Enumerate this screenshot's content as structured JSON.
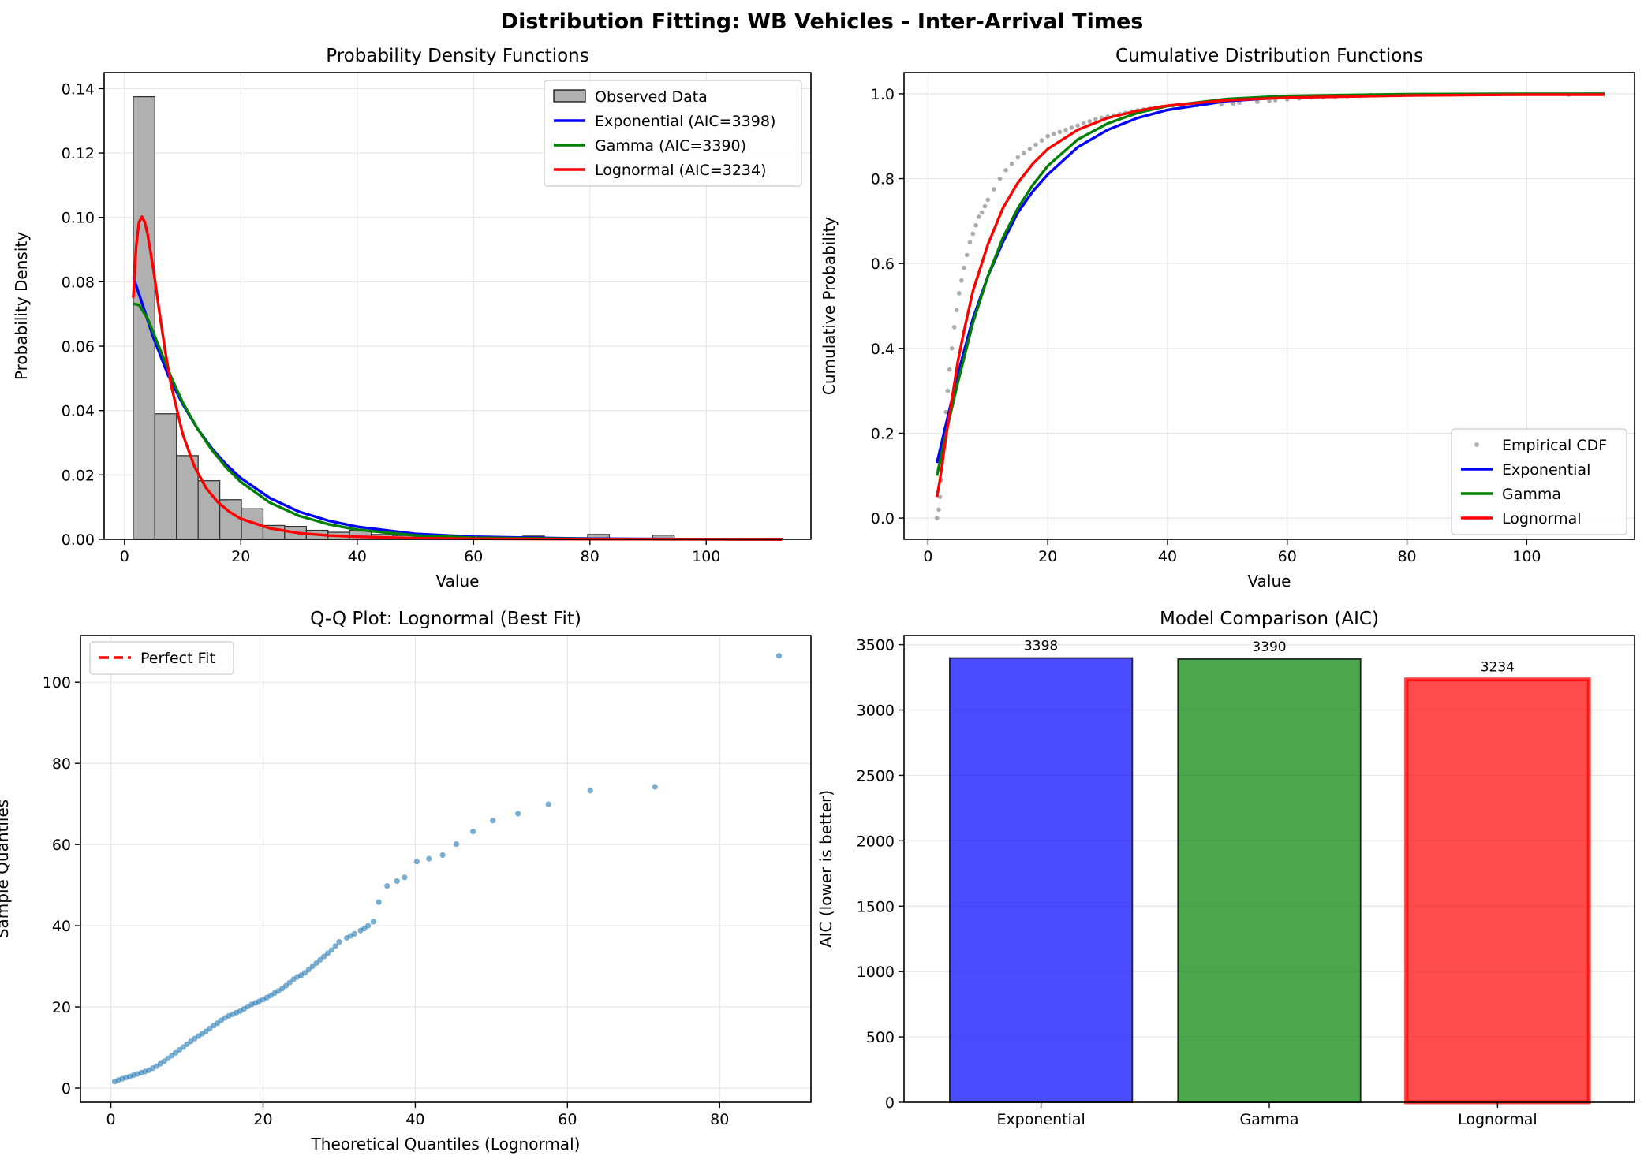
{
  "figure": {
    "suptitle": "Distribution Fitting: WB Vehicles - Inter-Arrival Times"
  },
  "colors": {
    "exponential": "#0000ff",
    "gamma": "#008000",
    "lognormal": "#ff0000",
    "histogram": "#b0b0b0",
    "empirical": "#808080",
    "qq_points": "#1f77b4",
    "grid": "#e6e6e6"
  },
  "chart_data": [
    {
      "id": "pdf",
      "type": "bar",
      "title": "Probability Density Functions",
      "xlabel": "Value",
      "ylabel": "Probability Density",
      "xlim": [
        -3.5,
        118
      ],
      "ylim": [
        0,
        0.145
      ],
      "xticks": [
        0,
        20,
        40,
        60,
        80,
        100
      ],
      "yticks": [
        0.0,
        0.02,
        0.04,
        0.06,
        0.08,
        0.1,
        0.12,
        0.14
      ],
      "ytick_labels": [
        "0.00",
        "0.02",
        "0.04",
        "0.06",
        "0.08",
        "0.10",
        "0.12",
        "0.14"
      ],
      "grid": true,
      "legend_position": "upper right",
      "legend": [
        "Observed Data",
        "Exponential (AIC=3398)",
        "Gamma (AIC=3390)",
        "Lognormal (AIC=3234)"
      ],
      "histogram": {
        "name": "Observed Data",
        "bin_start": 1.5,
        "bin_width": 3.72,
        "counts_density": [
          0.1375,
          0.039,
          0.026,
          0.0182,
          0.0123,
          0.0095,
          0.0043,
          0.004,
          0.0028,
          0.0022,
          0.0028,
          0.0015,
          0.0012,
          0.0008,
          0.0006,
          0.0005,
          0.0004,
          0.0004,
          0.001,
          0.0005,
          0.0005,
          0.0015,
          0.0003,
          0.0003,
          0.0013,
          0.0,
          0.0,
          0.0,
          0.0,
          0.0003
        ]
      },
      "series": [
        {
          "name": "Exponential (AIC=3398)",
          "color_key": "exponential",
          "x": [
            1.5,
            3,
            5,
            7.5,
            10,
            12.5,
            15,
            17.5,
            20,
            25,
            30,
            35,
            40,
            50,
            60,
            80,
            100,
            113
          ],
          "y": [
            0.0815,
            0.0735,
            0.0625,
            0.051,
            0.042,
            0.0345,
            0.0283,
            0.0232,
            0.019,
            0.0128,
            0.0086,
            0.0058,
            0.0039,
            0.0017,
            0.0008,
            0.0002,
            4e-05,
            1e-05
          ]
        },
        {
          "name": "Gamma (AIC=3390)",
          "color_key": "gamma",
          "x": [
            1.5,
            2.5,
            4,
            6,
            8,
            10,
            12.5,
            15,
            17.5,
            20,
            25,
            30,
            35,
            40,
            50,
            60,
            80,
            100,
            113
          ],
          "y": [
            0.0732,
            0.0728,
            0.0685,
            0.0595,
            0.0505,
            0.0425,
            0.0345,
            0.0278,
            0.0223,
            0.0178,
            0.0114,
            0.0073,
            0.0047,
            0.003,
            0.0012,
            0.0005,
            0.0001,
            2e-05,
            1e-05
          ]
        },
        {
          "name": "Lognormal (AIC=3234)",
          "color_key": "lognormal",
          "x": [
            1.5,
            2,
            2.5,
            3,
            3.5,
            4,
            5,
            6,
            7,
            8,
            10,
            12,
            14,
            16,
            18,
            20,
            25,
            30,
            35,
            40,
            50,
            60,
            80,
            100,
            113
          ],
          "y": [
            0.075,
            0.091,
            0.0985,
            0.1002,
            0.0985,
            0.0945,
            0.0835,
            0.0705,
            0.0585,
            0.048,
            0.0327,
            0.0227,
            0.016,
            0.0116,
            0.0086,
            0.0064,
            0.0034,
            0.0019,
            0.0012,
            0.0008,
            0.00035,
            0.00018,
            5e-05,
            2e-05,
            1e-05
          ]
        }
      ]
    },
    {
      "id": "cdf",
      "type": "line",
      "title": "Cumulative Distribution Functions",
      "xlabel": "Value",
      "ylabel": "Cumulative Probability",
      "xlim": [
        -4,
        118
      ],
      "ylim": [
        -0.05,
        1.05
      ],
      "xticks": [
        0,
        20,
        40,
        60,
        80,
        100
      ],
      "yticks": [
        0.0,
        0.2,
        0.4,
        0.6,
        0.8,
        1.0
      ],
      "ytick_labels": [
        "0.0",
        "0.2",
        "0.4",
        "0.6",
        "0.8",
        "1.0"
      ],
      "grid": true,
      "legend_position": "lower right",
      "legend": [
        "Empirical CDF",
        "Exponential",
        "Gamma",
        "Lognormal"
      ],
      "empirical": {
        "name": "Empirical CDF",
        "x": [
          1.5,
          1.8,
          2.0,
          2.2,
          2.4,
          2.6,
          2.8,
          3.0,
          3.3,
          3.6,
          4.0,
          4.4,
          4.8,
          5.2,
          5.6,
          6.0,
          6.5,
          7.0,
          7.5,
          8.0,
          8.5,
          9.0,
          9.5,
          10.0,
          11.0,
          12.0,
          13.0,
          14.0,
          15.0,
          16.0,
          17.0,
          18.0,
          19.0,
          20.0,
          21.0,
          22.0,
          23.0,
          24.0,
          25.0,
          26.0,
          27.0,
          28.0,
          29.0,
          30.0,
          31.0,
          32.0,
          33.0,
          34.0,
          35.0,
          36.0,
          37.0,
          38.0,
          39.0,
          41.0,
          45.0,
          49.0,
          51.0,
          52.0,
          55.0,
          57.0,
          58.0,
          60.0,
          62.0,
          64.0,
          66.0,
          68.0,
          70.0,
          72.0,
          74.0,
          107.0
        ],
        "y": [
          0.0,
          0.02,
          0.05,
          0.09,
          0.13,
          0.17,
          0.21,
          0.25,
          0.3,
          0.35,
          0.4,
          0.45,
          0.49,
          0.53,
          0.56,
          0.59,
          0.62,
          0.65,
          0.67,
          0.69,
          0.71,
          0.72,
          0.735,
          0.75,
          0.775,
          0.8,
          0.82,
          0.835,
          0.85,
          0.86,
          0.87,
          0.88,
          0.89,
          0.9,
          0.905,
          0.91,
          0.915,
          0.92,
          0.925,
          0.93,
          0.935,
          0.94,
          0.943,
          0.946,
          0.949,
          0.952,
          0.955,
          0.958,
          0.961,
          0.963,
          0.965,
          0.967,
          0.969,
          0.971,
          0.973,
          0.975,
          0.977,
          0.979,
          0.981,
          0.983,
          0.985,
          0.987,
          0.989,
          0.991,
          0.992,
          0.993,
          0.994,
          0.995,
          0.997,
          0.998
        ]
      },
      "series": [
        {
          "name": "Exponential",
          "color_key": "exponential",
          "x": [
            1.5,
            3,
            5,
            7.5,
            10,
            12.5,
            15,
            17.5,
            20,
            25,
            30,
            35,
            40,
            50,
            60,
            80,
            100,
            113
          ],
          "y": [
            0.13,
            0.22,
            0.34,
            0.47,
            0.57,
            0.65,
            0.72,
            0.77,
            0.81,
            0.874,
            0.915,
            0.943,
            0.962,
            0.983,
            0.992,
            0.998,
            0.999,
            1.0
          ]
        },
        {
          "name": "Gamma",
          "color_key": "gamma",
          "x": [
            1.5,
            3,
            5,
            7.5,
            10,
            12.5,
            15,
            17.5,
            20,
            25,
            30,
            35,
            40,
            50,
            60,
            80,
            100,
            113
          ],
          "y": [
            0.1,
            0.2,
            0.32,
            0.46,
            0.57,
            0.66,
            0.73,
            0.785,
            0.83,
            0.892,
            0.93,
            0.955,
            0.971,
            0.988,
            0.995,
            0.999,
            1.0,
            1.0
          ]
        },
        {
          "name": "Lognormal",
          "color_key": "lognormal",
          "x": [
            1.5,
            2,
            3,
            4,
            5,
            6,
            7.5,
            10,
            12.5,
            15,
            17.5,
            20,
            25,
            30,
            35,
            40,
            50,
            60,
            80,
            100,
            113
          ],
          "y": [
            0.05,
            0.09,
            0.19,
            0.28,
            0.37,
            0.44,
            0.535,
            0.645,
            0.73,
            0.79,
            0.835,
            0.87,
            0.915,
            0.943,
            0.96,
            0.972,
            0.985,
            0.991,
            0.996,
            0.998,
            0.998
          ]
        }
      ]
    },
    {
      "id": "qq",
      "type": "scatter",
      "title": "Q-Q Plot: Lognormal (Best Fit)",
      "xlabel": "Theoretical Quantiles (Lognormal)",
      "ylabel": "Sample Quantiles",
      "xlim": [
        -4,
        92
      ],
      "ylim": [
        -3.5,
        111.5
      ],
      "xticks": [
        0,
        20,
        40,
        60,
        80
      ],
      "yticks": [
        0,
        20,
        40,
        60,
        80,
        100
      ],
      "grid": true,
      "legend_position": "upper left",
      "legend": [
        "Perfect Fit"
      ],
      "points": {
        "x": [
          0.5,
          1.0,
          1.5,
          2.0,
          2.5,
          3.0,
          3.5,
          4.0,
          4.5,
          5.0,
          5.5,
          6.0,
          6.5,
          7.0,
          7.5,
          8.0,
          8.5,
          9.0,
          9.5,
          10.0,
          10.5,
          11.0,
          11.5,
          12.0,
          12.5,
          13.0,
          13.5,
          14.0,
          14.5,
          15.0,
          15.5,
          16.0,
          16.5,
          17.0,
          17.5,
          18.0,
          18.5,
          19.0,
          19.5,
          20.0,
          20.5,
          21.0,
          21.5,
          22.0,
          22.5,
          23.0,
          23.5,
          24.0,
          24.5,
          25.0,
          25.5,
          26.0,
          26.5,
          27.0,
          27.5,
          28.0,
          28.5,
          29.0,
          29.5,
          30.0,
          31.0,
          31.5,
          32.0,
          32.8,
          33.3,
          33.8,
          34.5,
          35.2,
          36.3,
          37.6,
          38.6,
          40.2,
          41.8,
          43.6,
          45.4,
          47.6,
          50.2,
          53.5,
          57.5,
          63.0,
          71.5,
          87.8
        ],
        "y": [
          1.6,
          2.0,
          2.3,
          2.6,
          2.9,
          3.2,
          3.5,
          3.8,
          4.1,
          4.4,
          4.9,
          5.4,
          6.0,
          6.6,
          7.3,
          8.0,
          8.7,
          9.4,
          10.1,
          10.8,
          11.5,
          12.2,
          12.8,
          13.4,
          14.0,
          14.7,
          15.4,
          16.0,
          16.7,
          17.3,
          17.8,
          18.2,
          18.6,
          19.0,
          19.5,
          20.1,
          20.6,
          21.0,
          21.4,
          21.8,
          22.3,
          22.8,
          23.4,
          23.9,
          24.5,
          25.2,
          26.0,
          26.8,
          27.4,
          27.8,
          28.4,
          29.2,
          30.0,
          30.8,
          31.6,
          32.4,
          33.2,
          34.0,
          35.0,
          36.0,
          37.0,
          37.5,
          38.0,
          38.8,
          39.3,
          40.0,
          41.0,
          45.8,
          49.8,
          51.0,
          51.9,
          55.8,
          56.5,
          57.4,
          60.1,
          63.2,
          65.9,
          67.6,
          69.9,
          73.3,
          74.2,
          106.5
        ]
      },
      "reference_line": {
        "name": "Perfect Fit",
        "color_key": "lognormal"
      }
    },
    {
      "id": "aic",
      "type": "bar",
      "title": "Model Comparison (AIC)",
      "xlabel": "",
      "ylabel": "AIC (lower is better)",
      "ylim": [
        0,
        3570
      ],
      "yticks": [
        0,
        500,
        1000,
        1500,
        2000,
        2500,
        3000,
        3500
      ],
      "grid": true,
      "categories": [
        "Exponential",
        "Gamma",
        "Lognormal"
      ],
      "values": [
        3398,
        3390,
        3234
      ],
      "data_labels": [
        "3398",
        "3390",
        "3234"
      ],
      "bar_color_keys": [
        "exponential",
        "gamma",
        "lognormal"
      ],
      "highlight": "Lognormal"
    }
  ]
}
